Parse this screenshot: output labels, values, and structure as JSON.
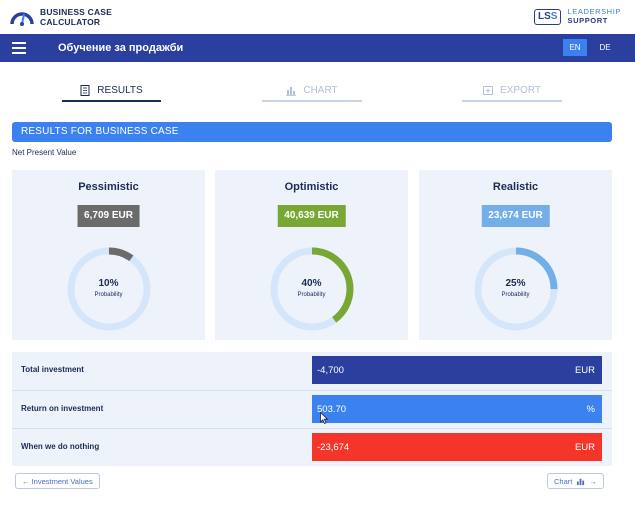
{
  "header": {
    "app_name_line1": "BUSINESS CASE",
    "app_name_line2": "CALCULATOR",
    "partner_logo_ls": "LS",
    "partner_logo_s": "S",
    "partner_line1": "LEADERSHIP",
    "partner_line2": "SUPPORT"
  },
  "navbar": {
    "title": "Обучение за продажби",
    "languages": [
      {
        "code": "EN",
        "active": true
      },
      {
        "code": "DE",
        "active": false
      }
    ]
  },
  "tabs": [
    {
      "label": "RESULTS",
      "icon": "document-icon",
      "active": true
    },
    {
      "label": "CHART",
      "icon": "bar-chart-icon",
      "active": false
    },
    {
      "label": "EXPORT",
      "icon": "export-icon",
      "active": false
    }
  ],
  "results": {
    "section_title": "RESULTS FOR BUSINESS CASE",
    "subtitle": "Net Present Value",
    "probability_label": "Probability",
    "scenarios": [
      {
        "name": "Pessimistic",
        "amount": "6,709 EUR",
        "probability": "10%",
        "fraction": 0.1,
        "color": "#6b6b6b"
      },
      {
        "name": "Optimistic",
        "amount": "40,639 EUR",
        "probability": "40%",
        "fraction": 0.4,
        "color": "#79a733"
      },
      {
        "name": "Realistic",
        "amount": "23,674 EUR",
        "probability": "25%",
        "fraction": 0.25,
        "color": "#74aee6"
      }
    ],
    "ring_track_color": "#d6e6fa"
  },
  "summary": {
    "rows": [
      {
        "label": "Total investment",
        "value": "-4,700",
        "unit": "EUR",
        "color": "#2b3f9f"
      },
      {
        "label": "Return on investment",
        "value": "503.70",
        "unit": "%",
        "color": "#3b82f0"
      },
      {
        "label": "When we do nothing",
        "value": "-23,674",
        "unit": "EUR",
        "color": "#f4362a"
      }
    ]
  },
  "footer": {
    "prev_label": "← Investment Values",
    "next_label": "Chart",
    "next_arrow": "→"
  }
}
